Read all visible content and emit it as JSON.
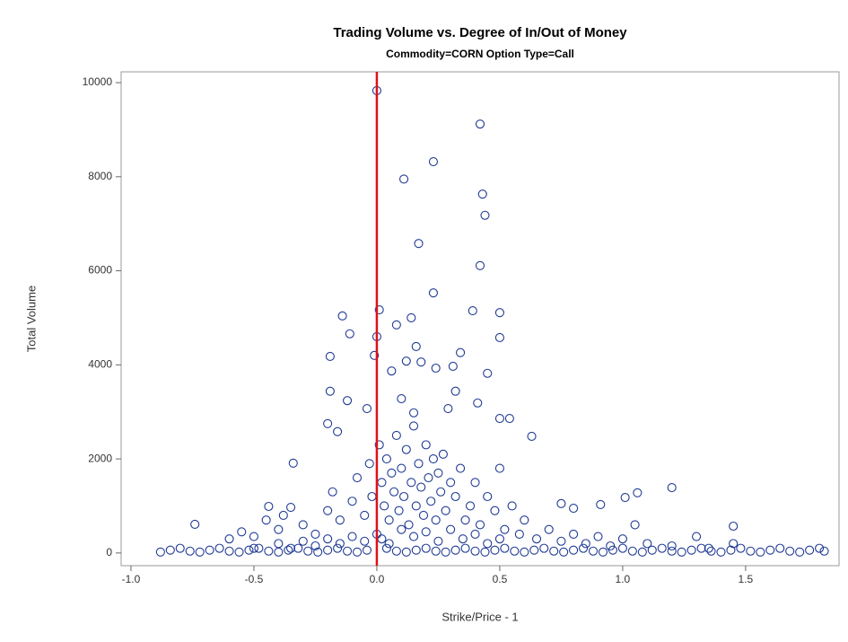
{
  "chart_data": {
    "type": "scatter",
    "title": "Trading Volume vs. Degree of In/Out of Money",
    "subtitle": "Commodity=CORN Option Type=Call",
    "x_label": "Strike/Price - 1",
    "y_label": "Total Volume",
    "color": "#1f3a93",
    "reference_line": {
      "x": 0,
      "color": "#e0101a"
    },
    "xlim": [
      -1.04,
      1.88
    ],
    "ylim": [
      -270,
      10230
    ],
    "xticks": [
      {
        "value": -1.0,
        "label": "-1.0"
      },
      -0.5,
      {
        "value": 0.0,
        "label": "0.0"
      },
      0.5,
      {
        "value": 1.0,
        "label": "1.0"
      },
      1.5
    ],
    "yticks": [
      0,
      2000,
      4000,
      6000,
      8000,
      10000
    ],
    "x": [
      0.0,
      0.42,
      0.23,
      0.11,
      0.43,
      0.44,
      0.17,
      0.42,
      0.23,
      0.01,
      0.39,
      0.5,
      -0.14,
      0.14,
      -0.11,
      0.0,
      0.5,
      0.08,
      0.16,
      0.34,
      -0.19,
      -0.01,
      0.12,
      0.18,
      0.24,
      0.31,
      0.45,
      0.06,
      -0.19,
      0.32,
      -0.12,
      0.41,
      0.1,
      -0.04,
      0.29,
      0.15,
      0.54,
      0.5,
      0.63,
      -0.2,
      -0.16,
      -0.34,
      1.2,
      1.06,
      1.01,
      0.91,
      0.75,
      0.8,
      -0.74,
      1.45,
      -0.44,
      -0.35,
      -0.88,
      -0.84,
      -0.8,
      -0.76,
      -0.72,
      -0.68,
      -0.64,
      -0.6,
      -0.56,
      -0.52,
      -0.48,
      -0.44,
      -0.4,
      -0.36,
      -0.32,
      -0.28,
      -0.24,
      -0.2,
      -0.16,
      -0.12,
      -0.08,
      -0.04,
      0.04,
      0.08,
      0.12,
      0.16,
      0.2,
      0.24,
      0.28,
      0.32,
      0.36,
      0.4,
      0.44,
      0.48,
      0.52,
      0.56,
      0.6,
      0.64,
      0.68,
      0.72,
      0.76,
      0.8,
      0.84,
      0.88,
      0.92,
      0.96,
      1.0,
      1.04,
      1.08,
      1.12,
      1.16,
      1.2,
      1.24,
      1.28,
      1.32,
      1.36,
      1.4,
      1.44,
      1.48,
      1.52,
      1.56,
      1.6,
      1.64,
      1.68,
      1.72,
      1.76,
      1.8,
      1.82,
      -0.6,
      -0.55,
      -0.5,
      -0.45,
      -0.4,
      -0.38,
      -0.3,
      -0.25,
      -0.2,
      -0.18,
      -0.15,
      -0.1,
      -0.08,
      -0.05,
      -0.03,
      -0.02,
      0.01,
      0.02,
      0.03,
      0.04,
      0.05,
      0.06,
      0.07,
      0.08,
      0.09,
      0.1,
      0.11,
      0.12,
      0.13,
      0.14,
      0.15,
      0.16,
      0.17,
      0.18,
      0.19,
      0.2,
      0.21,
      0.22,
      0.23,
      0.24,
      0.25,
      0.26,
      0.27,
      0.28,
      0.3,
      0.32,
      0.34,
      0.36,
      0.38,
      0.4,
      0.42,
      0.45,
      0.48,
      0.5,
      0.52,
      0.55,
      0.58,
      0.6,
      0.65,
      0.7,
      0.75,
      0.8,
      0.85,
      0.9,
      0.95,
      1.0,
      1.05,
      1.1,
      1.2,
      1.3,
      1.35,
      1.45,
      0.0,
      0.02,
      0.05,
      0.1,
      0.15,
      0.2,
      0.25,
      0.3,
      0.35,
      0.4,
      0.45,
      0.5,
      -0.05,
      -0.1,
      -0.15,
      -0.2,
      -0.25,
      -0.3,
      -0.35,
      -0.4,
      -0.5
    ],
    "values": [
      9830,
      9120,
      8320,
      7950,
      7630,
      7180,
      6580,
      6110,
      5530,
      5170,
      5150,
      5110,
      5040,
      5000,
      4660,
      4600,
      4580,
      4850,
      4390,
      4260,
      4180,
      4200,
      4080,
      4060,
      3930,
      3970,
      3820,
      3870,
      3440,
      3440,
      3240,
      3190,
      3280,
      3070,
      3070,
      2980,
      2860,
      2860,
      2480,
      2750,
      2580,
      1910,
      1390,
      1280,
      1180,
      1030,
      1050,
      950,
      610,
      570,
      990,
      970,
      20,
      60,
      100,
      40,
      20,
      60,
      100,
      40,
      20,
      60,
      100,
      40,
      20,
      60,
      100,
      40,
      20,
      60,
      100,
      40,
      20,
      60,
      100,
      40,
      20,
      60,
      100,
      40,
      20,
      60,
      100,
      40,
      20,
      60,
      100,
      40,
      20,
      60,
      100,
      40,
      20,
      60,
      100,
      40,
      20,
      60,
      100,
      40,
      20,
      60,
      100,
      40,
      20,
      60,
      100,
      40,
      20,
      60,
      100,
      40,
      20,
      60,
      100,
      40,
      20,
      60,
      100,
      40,
      300,
      450,
      350,
      700,
      500,
      800,
      600,
      400,
      900,
      1300,
      700,
      1100,
      1600,
      800,
      1900,
      1200,
      2300,
      1500,
      1000,
      2000,
      700,
      1700,
      1300,
      2500,
      900,
      1800,
      1200,
      2200,
      600,
      1500,
      2700,
      1000,
      1900,
      1400,
      800,
      2300,
      1600,
      1100,
      2000,
      700,
      1700,
      1300,
      2100,
      900,
      1500,
      1200,
      1800,
      700,
      1000,
      1500,
      600,
      1200,
      900,
      1800,
      500,
      1000,
      400,
      700,
      300,
      500,
      250,
      400,
      200,
      350,
      150,
      300,
      600,
      200,
      150,
      350,
      100,
      200,
      400,
      300,
      200,
      500,
      350,
      450,
      250,
      500,
      300,
      400,
      200,
      300,
      250,
      350,
      200,
      300,
      150,
      250,
      100,
      200,
      100
    ]
  }
}
